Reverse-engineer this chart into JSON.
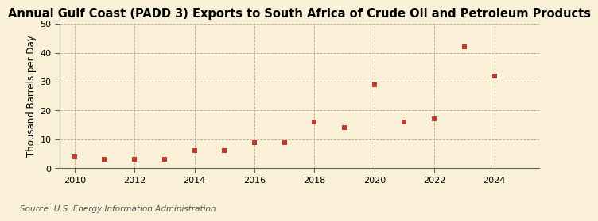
{
  "years": [
    2010,
    2011,
    2012,
    2013,
    2014,
    2015,
    2016,
    2017,
    2018,
    2019,
    2020,
    2021,
    2022,
    2023,
    2024
  ],
  "values": [
    4.0,
    3.0,
    3.0,
    3.0,
    6.0,
    6.0,
    9.0,
    9.0,
    16.0,
    14.0,
    29.0,
    16.0,
    17.0,
    42.0,
    32.0
  ],
  "title": "Annual Gulf Coast (PADD 3) Exports to South Africa of Crude Oil and Petroleum Products",
  "ylabel": "Thousand Barrels per Day",
  "source": "Source: U.S. Energy Information Administration",
  "xlim": [
    2009.5,
    2025.5
  ],
  "ylim": [
    0,
    50
  ],
  "yticks": [
    0,
    10,
    20,
    30,
    40,
    50
  ],
  "xticks": [
    2010,
    2012,
    2014,
    2016,
    2018,
    2020,
    2022,
    2024
  ],
  "marker_color": "#c0392b",
  "marker_size": 5,
  "background_color": "#faf0d8",
  "grid_color": "#b0a898",
  "title_fontsize": 10.5,
  "label_fontsize": 8.5,
  "tick_fontsize": 8,
  "source_fontsize": 7.5
}
